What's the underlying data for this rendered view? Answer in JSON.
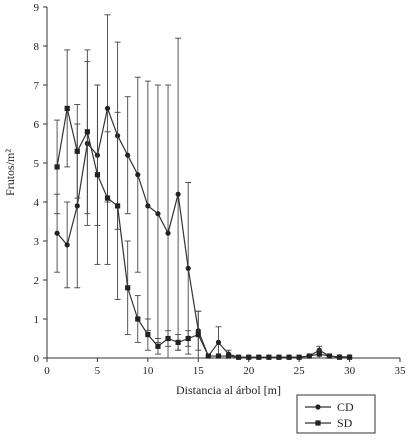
{
  "chart_data": {
    "type": "line",
    "xlabel": "Distancia al árbol [m]",
    "ylabel": "Frutos/m²",
    "xlim": [
      0,
      35
    ],
    "ylim": [
      0,
      9
    ],
    "xticks": [
      0,
      5,
      10,
      15,
      20,
      25,
      30,
      35
    ],
    "yticks": [
      0,
      1,
      2,
      3,
      4,
      5,
      6,
      7,
      8,
      9
    ],
    "grid": false,
    "legend_position": "bottom-right",
    "series": [
      {
        "name": "CD",
        "marker": "circle",
        "x": [
          1,
          2,
          3,
          4,
          5,
          6,
          7,
          8,
          9,
          10,
          11,
          12,
          13,
          14,
          15,
          16,
          17,
          18,
          19,
          20,
          21,
          22,
          23,
          24,
          25,
          26,
          27,
          28,
          29,
          30
        ],
        "y": [
          3.2,
          2.9,
          3.9,
          5.5,
          5.2,
          6.4,
          5.7,
          5.2,
          4.7,
          3.9,
          3.7,
          3.2,
          4.2,
          2.3,
          0.7,
          0.05,
          0.4,
          0.1,
          0.02,
          0.02,
          0.02,
          0.02,
          0.02,
          0.02,
          0.02,
          0.05,
          0.2,
          0.05,
          0.03,
          0.03
        ],
        "err": [
          1.0,
          1.1,
          2.1,
          2.1,
          1.8,
          2.4,
          2.4,
          1.5,
          2.5,
          3.2,
          3.3,
          3.8,
          4.0,
          2.2,
          0.5,
          0.05,
          0.4,
          0.1,
          0.02,
          0.02,
          0.02,
          0.02,
          0.02,
          0.02,
          0.02,
          0.05,
          0.1,
          0.05,
          0.03,
          0.03
        ]
      },
      {
        "name": "SD",
        "marker": "square",
        "x": [
          1,
          2,
          3,
          4,
          5,
          6,
          7,
          8,
          9,
          10,
          11,
          12,
          13,
          14,
          15,
          16,
          17,
          18,
          19,
          20,
          21,
          22,
          23,
          24,
          25,
          26,
          27,
          28,
          29,
          30
        ],
        "y": [
          4.9,
          6.4,
          5.3,
          5.8,
          4.7,
          4.1,
          3.9,
          1.8,
          1.0,
          0.6,
          0.3,
          0.5,
          0.4,
          0.5,
          0.6,
          0.05,
          0.05,
          0.05,
          0.02,
          0.02,
          0.02,
          0.02,
          0.02,
          0.02,
          0.02,
          0.05,
          0.1,
          0.05,
          0.02,
          0.02
        ],
        "err": [
          1.2,
          1.5,
          1.2,
          2.1,
          2.3,
          1.7,
          2.4,
          1.2,
          0.6,
          0.4,
          0.2,
          0.2,
          0.2,
          0.2,
          0.6,
          0.05,
          0.05,
          0.05,
          0.02,
          0.02,
          0.02,
          0.02,
          0.02,
          0.02,
          0.02,
          0.05,
          0.1,
          0.05,
          0.02,
          0.02
        ]
      }
    ]
  }
}
